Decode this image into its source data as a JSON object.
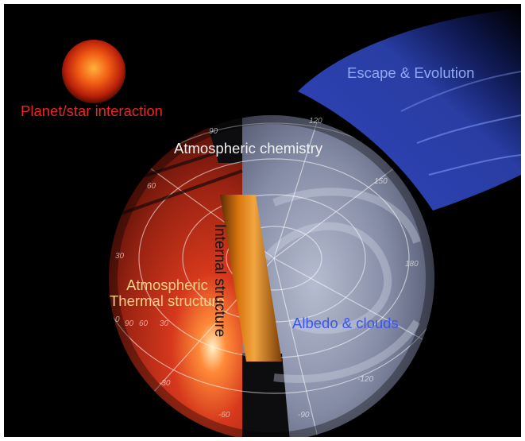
{
  "labels": {
    "star_interaction": "Planet/star interaction",
    "escape": "Escape & Evolution",
    "chemistry": "Atmospheric chemistry",
    "thermal_line1": "Atmospheric",
    "thermal_line2": "Thermal structure",
    "internal": "Internal structure",
    "albedo": "Albedo & clouds"
  },
  "grid_ticks": [
    "90",
    "120",
    "150",
    "180",
    "60",
    "30",
    "0",
    "-30",
    "-60",
    "-90",
    "-120",
    "30",
    "60",
    "90"
  ],
  "colors": {
    "star_interaction": "#e8281e",
    "escape": "#8fa9f2",
    "chemistry": "#f2f2f2",
    "thermal": "#f3d28a",
    "internal": "#111111",
    "albedo": "#3a56f0",
    "background": "#000000"
  }
}
